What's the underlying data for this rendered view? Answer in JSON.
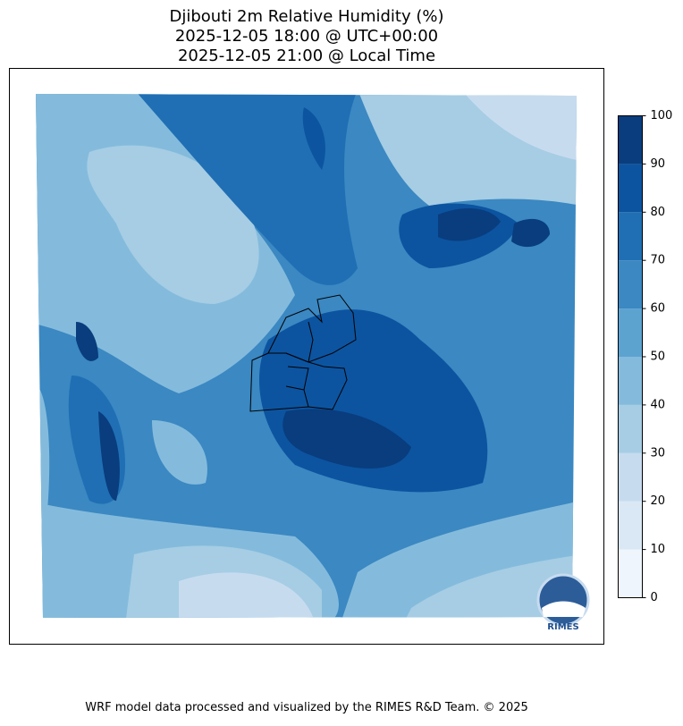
{
  "title": [
    "Djibouti 2m Relative Humidity (%)",
    "2025-12-05 18:00 @ UTC+00:00",
    "2025-12-05 21:00 @ Local Time"
  ],
  "colorbar": {
    "ticks": [
      0,
      10,
      20,
      30,
      40,
      50,
      60,
      70,
      80,
      90,
      100
    ],
    "colors": [
      "#eff5fc",
      "#dae8f6",
      "#c7dbef",
      "#a6cde4",
      "#84bbdc",
      "#5ca3d0",
      "#3b88c2",
      "#206fb4",
      "#0c54a0",
      "#093d7e"
    ]
  },
  "logo": "RIMES",
  "footer": "WRF model data processed and visualized by the RIMES R&D Team. © 2025"
}
